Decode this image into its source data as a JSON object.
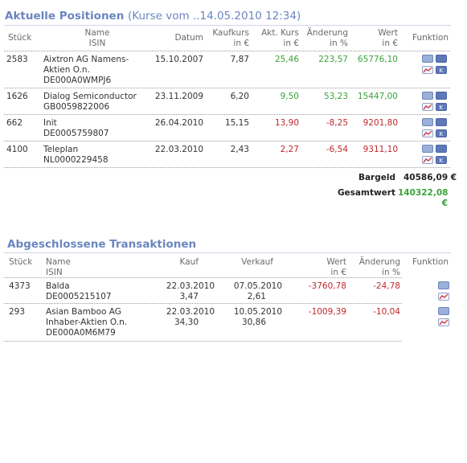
{
  "positions": {
    "title": "Aktuelle Positionen",
    "subtitle": "(Kurse vom ..14.05.2010 12:34)",
    "headers": {
      "stueck": "Stück",
      "name": "Name",
      "isin": "ISIN",
      "datum": "Datum",
      "kaufkurs": "Kaufkurs",
      "kaufkurs_unit": "in €",
      "aktkurs": "Akt. Kurs",
      "aktkurs_unit": "in €",
      "aenderung": "Änderung",
      "aenderung_unit": "in %",
      "wert": "Wert",
      "wert_unit": "in €",
      "funktion": "Funktion"
    },
    "rows": [
      {
        "stueck": "2583",
        "name1": "Aixtron AG Namens-",
        "name2": "Aktien O.n.",
        "isin": "DE000A0WMPJ6",
        "datum": "15.10.2007",
        "kaufkurs": "7,87",
        "aktkurs": "25,46",
        "aenderung": "223,57",
        "wert": "65776,10",
        "trend": "pos"
      },
      {
        "stueck": "1626",
        "name1": "Dialog Semiconductor",
        "isin": "GB0059822006",
        "datum": "23.11.2009",
        "kaufkurs": "6,20",
        "aktkurs": "9,50",
        "aenderung": "53,23",
        "wert": "15447,00",
        "trend": "pos"
      },
      {
        "stueck": "662",
        "name1": "Init",
        "isin": "DE0005759807",
        "datum": "26.04.2010",
        "kaufkurs": "15,15",
        "aktkurs": "13,90",
        "aenderung": "-8,25",
        "wert": "9201,80",
        "trend": "neg"
      },
      {
        "stueck": "4100",
        "name1": "Teleplan",
        "isin": "NL0000229458",
        "datum": "22.03.2010",
        "kaufkurs": "2,43",
        "aktkurs": "2,27",
        "aenderung": "-6,54",
        "wert": "9311,10",
        "trend": "neg"
      }
    ],
    "bargeld_label": "Bargeld",
    "bargeld_value": "40586,09 €",
    "gesamtwert_label": "Gesamtwert",
    "gesamtwert_value": "140322,08",
    "gesamtwert_unit": "€"
  },
  "transactions": {
    "title": "Abgeschlossene Transaktionen",
    "headers": {
      "stueck": "Stück",
      "name": "Name",
      "isin": "ISIN",
      "kauf": "Kauf",
      "verkauf": "Verkauf",
      "wert": "Wert",
      "wert_unit": "in €",
      "aenderung": "Änderung",
      "aenderung_unit": "in %",
      "funktion": "Funktion"
    },
    "rows": [
      {
        "stueck": "4373",
        "name1": "Balda",
        "isin": "DE0005215107",
        "kauf_datum": "22.03.2010",
        "kauf_kurs": "3,47",
        "verkauf_datum": "07.05.2010",
        "verkauf_kurs": "2,61",
        "wert": "-3760,78",
        "aenderung": "-24,78"
      },
      {
        "stueck": "293",
        "name1": "Asian Bamboo AG",
        "name2": "Inhaber-Aktien O.n.",
        "isin": "DE000A0M6M79",
        "kauf_datum": "22.03.2010",
        "kauf_kurs": "34,30",
        "verkauf_datum": "10.05.2010",
        "verkauf_kurs": "30,86",
        "wert": "-1009,39",
        "aenderung": "-10,04"
      }
    ]
  },
  "colors": {
    "title": "#6b86bf",
    "positive": "#3aa33a",
    "negative": "#c0282d"
  }
}
